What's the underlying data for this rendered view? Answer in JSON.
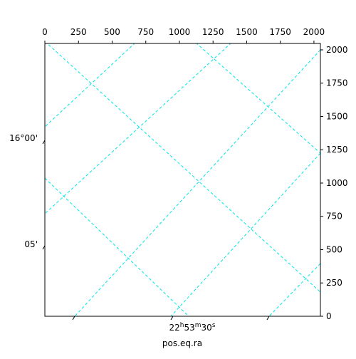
{
  "chart_data": {
    "type": "image",
    "xlabel": "pos.eq.ra",
    "xlim": [
      0,
      2048
    ],
    "ylim": [
      0,
      2048
    ],
    "xticks": [
      0,
      250,
      500,
      750,
      1000,
      1250,
      1500,
      1750,
      2000
    ],
    "yticks": [
      0,
      250,
      500,
      750,
      1000,
      1250,
      1500,
      1750,
      2000
    ],
    "ra_ticks": [
      [
        "22",
        "h",
        "53",
        "m",
        "30",
        "s"
      ]
    ],
    "dec_ticks": [
      "16°00'",
      "05'"
    ],
    "grid": true,
    "grid_color": "#00e5e5",
    "cmap": "gray"
  }
}
